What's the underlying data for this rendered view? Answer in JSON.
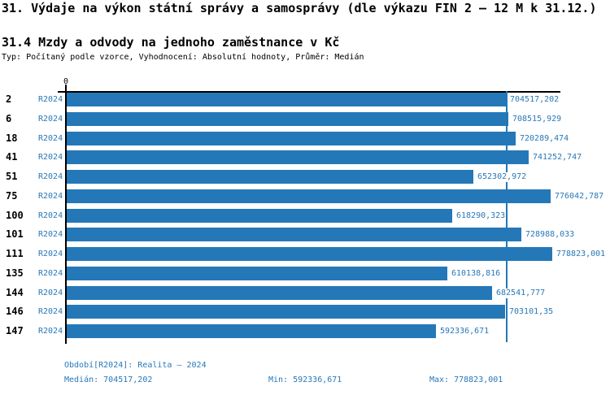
{
  "header": {
    "title": "31. Výdaje na výkon státní správy a samosprávy (dle výkazu FIN 2 – 12 M k 31.12.)",
    "subtitle": "31.4 Mzdy a odvody na jednoho zaměstnance v Kč",
    "meta": "Typ: Počítaný podle vzorce, Vyhodnocení: Absolutní hodnoty, Průměr: Medián"
  },
  "colors": {
    "bar": "#2478b8",
    "accent_text": "#2878b8",
    "axis": "#000000",
    "median_line": "#2478b8"
  },
  "chart_data": {
    "type": "bar",
    "orientation": "horizontal",
    "title": "31.4 Mzdy a odvody na jednoho zaměstnance v Kč",
    "xlabel": "",
    "ylabel": "",
    "origin_label": "0",
    "xlim": [
      0,
      792000
    ],
    "grid": false,
    "legend_position": "none",
    "categories": [
      "2",
      "6",
      "18",
      "41",
      "51",
      "75",
      "100",
      "101",
      "111",
      "135",
      "144",
      "146",
      "147"
    ],
    "series": [
      {
        "name": "R2024",
        "values": [
          704517.202,
          708515.929,
          720289.474,
          741252.747,
          652302.972,
          776042.787,
          618290.323,
          728988.033,
          778823.001,
          610138.816,
          682541.777,
          703101.35,
          592336.671
        ]
      }
    ],
    "value_labels": [
      "704517,202",
      "708515,929",
      "720289,474",
      "741252,747",
      "652302,972",
      "776042,787",
      "618290,323",
      "728988,033",
      "778823,001",
      "610138,816",
      "682541,777",
      "703101,35",
      "592336,671"
    ],
    "median_value": 704517.202,
    "annotations": [
      "median reference line at 704517,202"
    ]
  },
  "footer": {
    "period": "Období[R2024]: Realita – 2024",
    "median": "Medián: 704517,202",
    "min": "Min: 592336,671",
    "max": "Max: 778823,001"
  }
}
